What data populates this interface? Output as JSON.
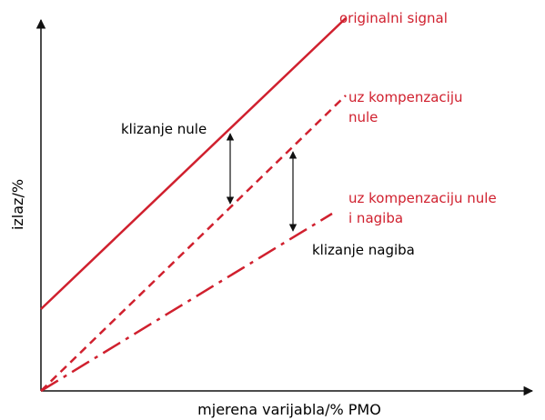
{
  "curves": {
    "original": {
      "label": "originalni signal"
    },
    "zero_comp": {
      "label_lines": [
        "uz kompenzaciju",
        "nule"
      ]
    },
    "zero_slope_comp": {
      "label_lines": [
        "uz kompenzaciju nule",
        "i nagiba"
      ]
    }
  },
  "annotations": {
    "zero_drift": "klizanje nule",
    "slope_drift": "klizanje nagiba"
  },
  "axes": {
    "y_label": "izlaz/%",
    "x_label": "mjerena varijabla/% PMO"
  }
}
